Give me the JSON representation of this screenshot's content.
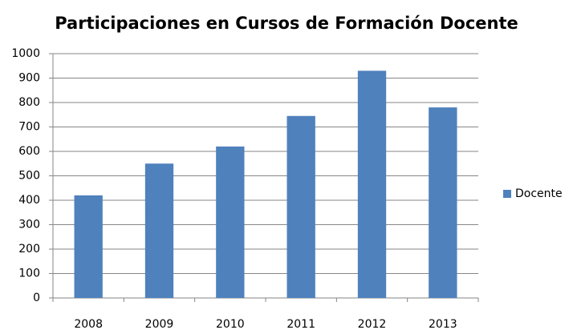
{
  "chart_data": {
    "type": "bar",
    "title": "Participaciones en Cursos de Formación Docente",
    "categories": [
      "2008",
      "2009",
      "2010",
      "2011",
      "2012",
      "2013"
    ],
    "series": [
      {
        "name": "Docente",
        "color": "#4f81bd",
        "values": [
          420,
          550,
          620,
          745,
          930,
          780
        ]
      }
    ],
    "ylim": [
      0,
      1000
    ],
    "yticks": [
      0,
      100,
      200,
      300,
      400,
      500,
      600,
      700,
      800,
      900,
      1000
    ],
    "grid": true,
    "legend": "right"
  }
}
